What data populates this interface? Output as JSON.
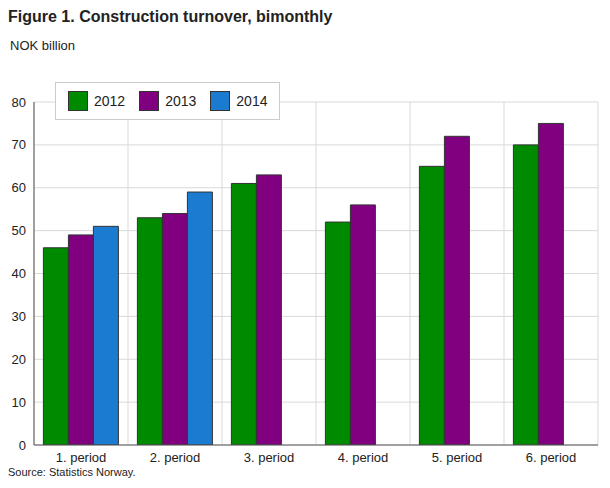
{
  "chart_data": {
    "type": "bar",
    "title": "Figure 1. Construction turnover, bimonthly",
    "y_label": "NOK billion",
    "source": "Source: Statistics Norway.",
    "categories": [
      "1. period",
      "2. period",
      "3. period",
      "4. period",
      "5. period",
      "6. period"
    ],
    "series": [
      {
        "name": "2012",
        "color": "#008a00",
        "values": [
          46,
          53,
          61,
          52,
          65,
          70
        ]
      },
      {
        "name": "2013",
        "color": "#800080",
        "values": [
          49,
          54,
          63,
          56,
          72,
          75
        ]
      },
      {
        "name": "2014",
        "color": "#1a7bd0",
        "values": [
          51,
          59,
          null,
          null,
          null,
          null
        ]
      }
    ],
    "ylim": [
      0,
      80
    ],
    "yticks": [
      0,
      10,
      20,
      30,
      40,
      50,
      60,
      70,
      80
    ],
    "grid": true,
    "legend": "upper left"
  }
}
